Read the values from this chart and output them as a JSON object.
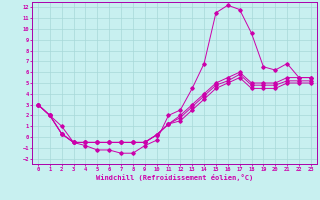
{
  "title": "",
  "xlabel": "Windchill (Refroidissement éolien,°C)",
  "ylabel": "",
  "background_color": "#c8f0f0",
  "grid_color": "#a8d8d8",
  "line_color": "#cc00aa",
  "spine_color": "#aa00aa",
  "xlim": [
    -0.5,
    23.5
  ],
  "ylim": [
    -2.5,
    12.5
  ],
  "xticks": [
    0,
    1,
    2,
    3,
    4,
    5,
    6,
    7,
    8,
    9,
    10,
    11,
    12,
    13,
    14,
    15,
    16,
    17,
    18,
    19,
    20,
    21,
    22,
    23
  ],
  "yticks": [
    -2,
    -1,
    0,
    1,
    2,
    3,
    4,
    5,
    6,
    7,
    8,
    9,
    10,
    11,
    12
  ],
  "line1_x": [
    0,
    1,
    2,
    3,
    4,
    5,
    6,
    7,
    8,
    9,
    10,
    11,
    12,
    13,
    14,
    15,
    16,
    17,
    18,
    19,
    20,
    21,
    22,
    23
  ],
  "line1_y": [
    3,
    2,
    1,
    -0.5,
    -0.8,
    -1.2,
    -1.2,
    -1.5,
    -1.5,
    -0.8,
    -0.3,
    2,
    2.5,
    4.5,
    6.8,
    11.5,
    12.2,
    11.8,
    9.6,
    6.5,
    6.2,
    6.8,
    5.5,
    5.5
  ],
  "line2_x": [
    0,
    1,
    2,
    3,
    4,
    5,
    6,
    7,
    8,
    9,
    10,
    11,
    12,
    13,
    14,
    15,
    16,
    17,
    18,
    19,
    20,
    21,
    22,
    23
  ],
  "line2_y": [
    3,
    2,
    0.3,
    -0.5,
    -0.5,
    -0.5,
    -0.5,
    -0.5,
    -0.5,
    -0.5,
    0.2,
    1.2,
    2,
    3,
    4,
    5,
    5.5,
    6,
    5,
    5,
    5,
    5.5,
    5.5,
    5.5
  ],
  "line3_x": [
    0,
    1,
    2,
    3,
    4,
    5,
    6,
    7,
    8,
    9,
    10,
    11,
    12,
    13,
    14,
    15,
    16,
    17,
    18,
    19,
    20,
    21,
    22,
    23
  ],
  "line3_y": [
    3,
    2,
    0.3,
    -0.5,
    -0.5,
    -0.5,
    -0.5,
    -0.5,
    -0.5,
    -0.5,
    0.2,
    1.2,
    1.8,
    2.8,
    3.8,
    4.8,
    5.2,
    5.8,
    4.8,
    4.8,
    4.8,
    5.2,
    5.2,
    5.2
  ],
  "line4_x": [
    0,
    1,
    2,
    3,
    4,
    5,
    6,
    7,
    8,
    9,
    10,
    11,
    12,
    13,
    14,
    15,
    16,
    17,
    18,
    19,
    20,
    21,
    22,
    23
  ],
  "line4_y": [
    3,
    2,
    0.3,
    -0.5,
    -0.5,
    -0.5,
    -0.5,
    -0.5,
    -0.5,
    -0.5,
    0.2,
    1.2,
    1.5,
    2.5,
    3.5,
    4.5,
    5,
    5.5,
    4.5,
    4.5,
    4.5,
    5,
    5,
    5
  ]
}
